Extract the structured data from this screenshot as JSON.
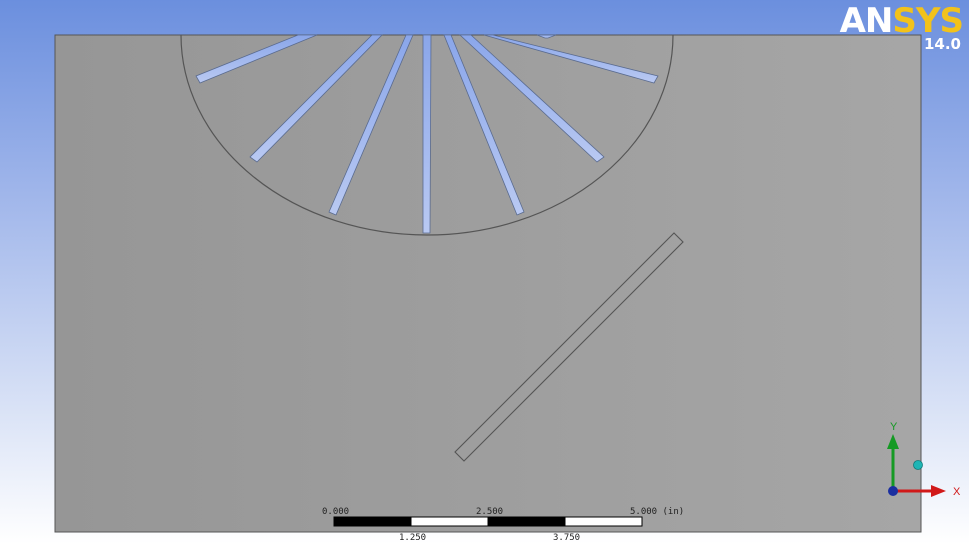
{
  "logo": {
    "word_part1": "AN",
    "word_part2": "SYS",
    "version": "14.0"
  },
  "scale_bar": {
    "top_labels": [
      "0.000",
      "2.500",
      "5.000 (in)"
    ],
    "bottom_labels": [
      "1.250",
      "3.750"
    ]
  },
  "triad": {
    "x_label": "X",
    "y_label": "Y"
  },
  "colors": {
    "background_top": "#6b8fde",
    "background_bottom": "#ffffff",
    "part_face": "#a3a3a3",
    "slot_fill": "#9fb6ee",
    "x_axis": "#d11919",
    "y_axis": "#159a24",
    "z_axis": "#1b2fa0",
    "iso_ball": "#1fb5b5",
    "logo_text": "#ffffff",
    "logo_accent": "#f2c21b"
  }
}
